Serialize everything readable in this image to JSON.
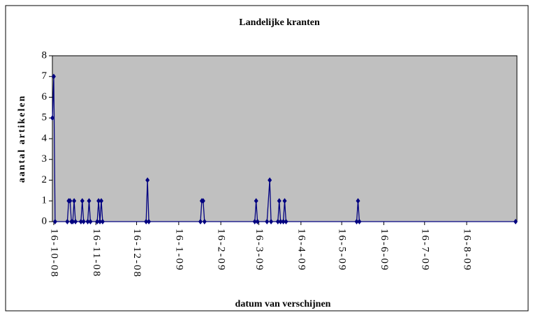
{
  "chart_data": {
    "type": "line",
    "title": "Landelijke kranten",
    "x_label": "datum van verschijnen",
    "y_label": "aantal artikelen",
    "x": [
      "2008-10-15",
      "2008-10-16",
      "2008-10-17",
      "2008-10-26",
      "2008-10-27",
      "2008-10-28",
      "2008-10-29",
      "2008-10-30",
      "2008-10-31",
      "2008-11-01",
      "2008-11-05",
      "2008-11-06",
      "2008-11-07",
      "2008-11-10",
      "2008-11-11",
      "2008-11-12",
      "2008-11-17",
      "2008-11-18",
      "2008-11-19",
      "2008-11-20",
      "2008-11-21",
      "2008-12-23",
      "2008-12-24",
      "2008-12-25",
      "2009-02-01",
      "2009-02-02",
      "2009-02-03",
      "2009-02-04",
      "2009-03-13",
      "2009-03-14",
      "2009-03-15",
      "2009-03-22",
      "2009-03-24",
      "2009-03-25",
      "2009-03-30",
      "2009-03-31",
      "2009-04-01",
      "2009-04-03",
      "2009-04-04",
      "2009-04-05",
      "2009-05-27",
      "2009-05-28",
      "2009-05-29",
      "2009-09-21"
    ],
    "values": [
      5,
      7,
      0,
      0,
      1,
      1,
      0,
      0,
      1,
      0,
      0,
      1,
      0,
      0,
      1,
      0,
      0,
      1,
      0,
      1,
      0,
      0,
      2,
      0,
      0,
      1,
      1,
      0,
      0,
      1,
      0,
      0,
      2,
      0,
      0,
      1,
      0,
      0,
      1,
      0,
      0,
      1,
      0,
      0
    ],
    "color": "#000080",
    "xlim": [
      "2008-10-15",
      "2009-09-22"
    ],
    "xticks": [
      {
        "value": "2008-10-16",
        "label": "16-10-08"
      },
      {
        "value": "2008-11-16",
        "label": "16-11-08"
      },
      {
        "value": "2008-12-16",
        "label": "16-12-08"
      },
      {
        "value": "2009-01-16",
        "label": "16-1-09"
      },
      {
        "value": "2009-02-16",
        "label": "16-2-09"
      },
      {
        "value": "2009-03-16",
        "label": "16-3-09"
      },
      {
        "value": "2009-04-16",
        "label": "16-4-09"
      },
      {
        "value": "2009-05-16",
        "label": "16-5-09"
      },
      {
        "value": "2009-06-16",
        "label": "16-6-09"
      },
      {
        "value": "2009-07-16",
        "label": "16-7-09"
      },
      {
        "value": "2009-08-16",
        "label": "16-8-09"
      }
    ],
    "ylim": [
      0,
      8
    ],
    "yticks": [
      0,
      1,
      2,
      3,
      4,
      5,
      6,
      7,
      8
    ],
    "grid": false
  }
}
